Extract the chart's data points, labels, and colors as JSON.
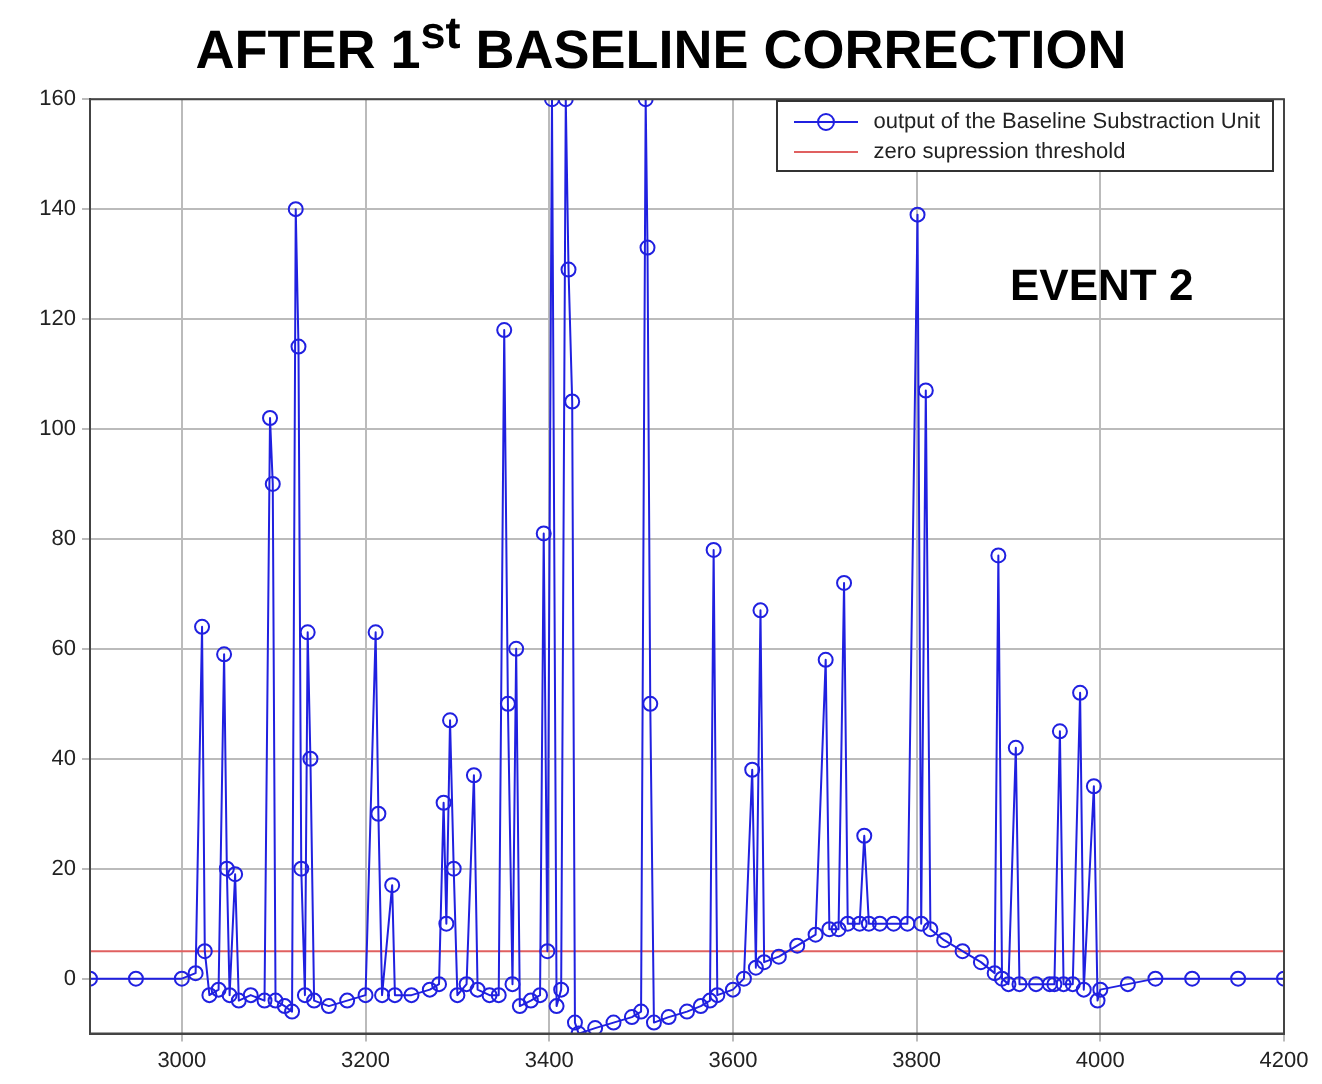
{
  "chart_data": {
    "type": "line",
    "title": "AFTER 1$^{st}$ BASELINE CORRECTION",
    "annotations": [
      "EVENT 2"
    ],
    "xlim": [
      2900,
      4200
    ],
    "xticks": [
      3000,
      3200,
      3400,
      3600,
      3800,
      4000,
      4200
    ],
    "ylim": [
      -10,
      160
    ],
    "yticks": [
      0,
      20,
      40,
      60,
      80,
      100,
      120,
      140,
      160
    ],
    "grid": true,
    "legend": "top right",
    "series": [
      {
        "name": "output of the Baseline Substraction Unit",
        "color": "#2020e0",
        "marker": "circle",
        "line_style": "solid",
        "x": [
          2900,
          2950,
          3000,
          3015,
          3022,
          3025,
          3030,
          3040,
          3046,
          3049,
          3052,
          3058,
          3062,
          3075,
          3090,
          3096,
          3099,
          3102,
          3112,
          3120,
          3124,
          3127,
          3130,
          3134,
          3137,
          3140,
          3144,
          3160,
          3180,
          3200,
          3211,
          3214,
          3218,
          3229,
          3232,
          3250,
          3270,
          3280,
          3285,
          3288,
          3292,
          3296,
          3300,
          3310,
          3318,
          3322,
          3335,
          3345,
          3351,
          3355,
          3360,
          3364,
          3368,
          3380,
          3390,
          3394,
          3398,
          3403,
          3408,
          3413,
          3418,
          3421,
          3425,
          3428,
          3432,
          3450,
          3470,
          3490,
          3500,
          3505,
          3507,
          3510,
          3514,
          3530,
          3550,
          3565,
          3575,
          3579,
          3583,
          3600,
          3612,
          3621,
          3625,
          3630,
          3634,
          3650,
          3670,
          3690,
          3701,
          3705,
          3715,
          3721,
          3725,
          3738,
          3743,
          3748,
          3760,
          3775,
          3790,
          3801,
          3805,
          3810,
          3815,
          3830,
          3850,
          3870,
          3885,
          3889,
          3893,
          3900,
          3908,
          3912,
          3930,
          3945,
          3950,
          3956,
          3960,
          3970,
          3978,
          3982,
          3993,
          3997,
          4000,
          4030,
          4060,
          4100,
          4150,
          4200
        ],
        "values": [
          0,
          0,
          0,
          1,
          64,
          5,
          -3,
          -2,
          59,
          20,
          -3,
          19,
          -4,
          -3,
          -4,
          102,
          90,
          -4,
          -5,
          -6,
          140,
          115,
          20,
          -3,
          63,
          40,
          -4,
          -5,
          -4,
          -3,
          63,
          30,
          -3,
          17,
          -3,
          -3,
          -2,
          -1,
          32,
          10,
          47,
          20,
          -3,
          -1,
          37,
          -2,
          -3,
          -3,
          118,
          50,
          -1,
          60,
          -5,
          -4,
          -3,
          81,
          5,
          160,
          -5,
          -2,
          160,
          129,
          105,
          -8,
          -10,
          -9,
          -8,
          -7,
          -6,
          160,
          133,
          50,
          -8,
          -7,
          -6,
          -5,
          -4,
          78,
          -3,
          -2,
          0,
          38,
          2,
          67,
          3,
          4,
          6,
          8,
          58,
          9,
          9,
          72,
          10,
          10,
          26,
          10,
          10,
          10,
          10,
          139,
          10,
          107,
          9,
          7,
          5,
          3,
          1,
          77,
          0,
          -1,
          42,
          -1,
          -1,
          -1,
          -1,
          45,
          -1,
          -1,
          52,
          -2,
          35,
          -4,
          -2,
          -1,
          0,
          0,
          0,
          0
        ]
      },
      {
        "name": "zero supression threshold",
        "color": "#e06060",
        "marker": "none",
        "line_style": "solid",
        "x": [
          2900,
          4200
        ],
        "values": [
          5,
          5
        ]
      }
    ]
  }
}
